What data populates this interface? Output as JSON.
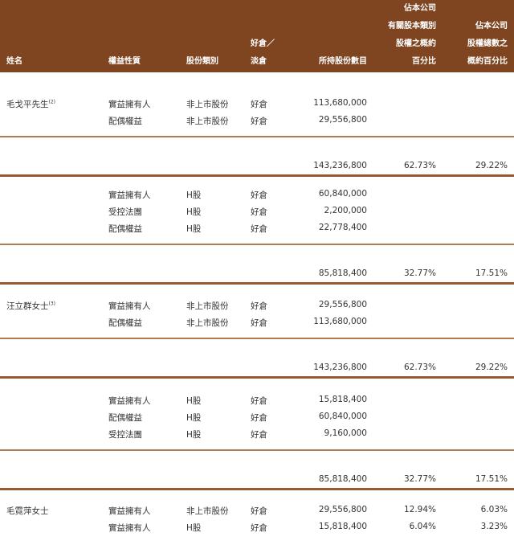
{
  "header": {
    "name": "姓名",
    "interest": "權益性質",
    "class": "股份類別",
    "position": [
      "好倉／",
      "淡倉"
    ],
    "shares": "所持股份數目",
    "pct_class": [
      "佔本公司",
      "有關股本類別",
      "股權之概約",
      "百分比"
    ],
    "pct_total": [
      "佔本公司",
      "股權總數之",
      "概約百分比"
    ]
  },
  "groups": [
    {
      "name": "毛戈平先生",
      "note": "(2)",
      "rows": [
        [
          "實益擁有人",
          "非上市股份",
          "好倉",
          "113,680,000",
          "",
          ""
        ],
        [
          "配偶權益",
          "非上市股份",
          "好倉",
          "29,556,800",
          "",
          ""
        ]
      ],
      "total": [
        "143,236,800",
        "62.73%",
        "29.22%"
      ]
    },
    {
      "name": "",
      "note": "",
      "rows": [
        [
          "實益擁有人",
          "H股",
          "好倉",
          "60,840,000",
          "",
          ""
        ],
        [
          "受控法團",
          "H股",
          "好倉",
          "2,200,000",
          "",
          ""
        ],
        [
          "配偶權益",
          "H股",
          "好倉",
          "22,778,400",
          "",
          ""
        ]
      ],
      "total": [
        "85,818,400",
        "32.77%",
        "17.51%"
      ]
    },
    {
      "name": "汪立群女士",
      "note": "(3)",
      "rows": [
        [
          "實益擁有人",
          "非上市股份",
          "好倉",
          "29,556,800",
          "",
          ""
        ],
        [
          "配偶權益",
          "非上市股份",
          "好倉",
          "113,680,000",
          "",
          ""
        ]
      ],
      "total": [
        "143,236,800",
        "62.73%",
        "29.22%"
      ]
    },
    {
      "name": "",
      "note": "",
      "rows": [
        [
          "實益擁有人",
          "H股",
          "好倉",
          "15,818,400",
          "",
          ""
        ],
        [
          "配偶權益",
          "H股",
          "好倉",
          "60,840,000",
          "",
          ""
        ],
        [
          "受控法團",
          "H股",
          "好倉",
          "9,160,000",
          "",
          ""
        ]
      ],
      "total": [
        "85,818,400",
        "32.77%",
        "17.51%"
      ]
    },
    {
      "name": "毛霓萍女士",
      "note": "",
      "rows": [
        [
          "實益擁有人",
          "非上市股份",
          "好倉",
          "29,556,800",
          "12.94%",
          "6.03%"
        ],
        [
          "實益擁有人",
          "H股",
          "好倉",
          "15,818,400",
          "6.04%",
          "3.23%"
        ]
      ],
      "total": null
    }
  ]
}
